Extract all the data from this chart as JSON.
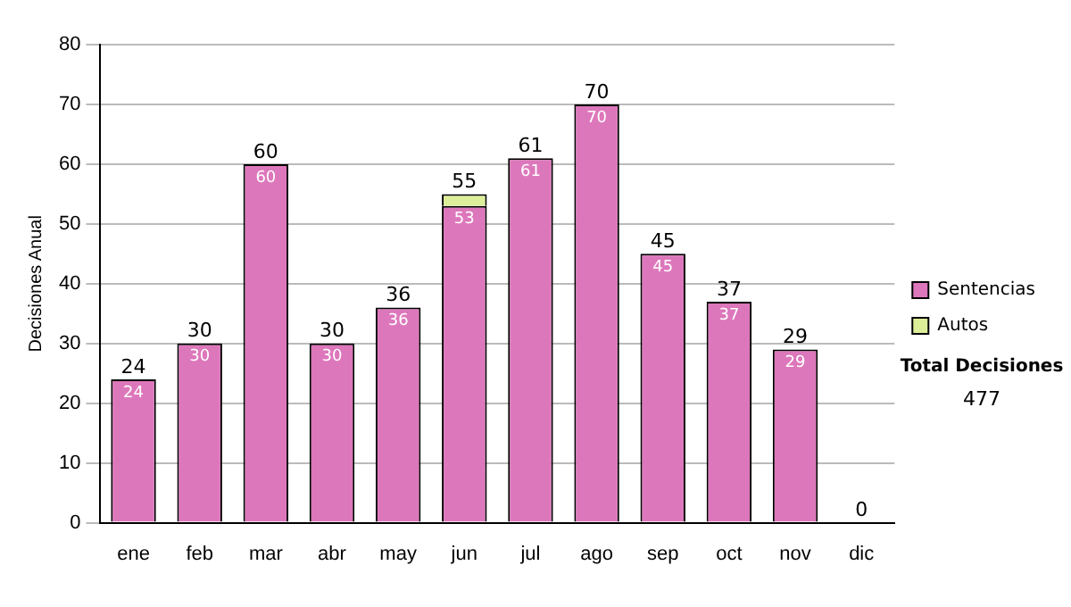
{
  "chart_data": {
    "type": "bar",
    "stacked": true,
    "ylabel": "Decisiones Anual",
    "categories": [
      "ene",
      "feb",
      "mar",
      "abr",
      "may",
      "jun",
      "jul",
      "ago",
      "sep",
      "oct",
      "nov",
      "dic"
    ],
    "series": [
      {
        "name": "Sentencias",
        "color": "#dd77bb",
        "values": [
          24,
          30,
          60,
          30,
          36,
          53,
          61,
          70,
          45,
          37,
          29,
          0
        ],
        "value_labels": [
          "24",
          "30",
          "60",
          "30",
          "36",
          "53",
          "61",
          "70",
          "45",
          "37",
          "29",
          null
        ]
      },
      {
        "name": "Autos",
        "color": "#ddee99",
        "values": [
          0,
          0,
          0,
          0,
          0,
          2,
          0,
          0,
          0,
          0,
          0,
          0
        ]
      }
    ],
    "totals": [
      "24",
      "30",
      "60",
      "30",
      "36",
      "55",
      "61",
      "70",
      "45",
      "37",
      "29",
      "0"
    ],
    "ylim": [
      0,
      80
    ],
    "yticks": [
      0,
      10,
      20,
      30,
      40,
      50,
      60,
      70,
      80
    ],
    "grid": "y",
    "legend": "right",
    "annotations": [
      "Total Decisiones",
      "477"
    ]
  }
}
